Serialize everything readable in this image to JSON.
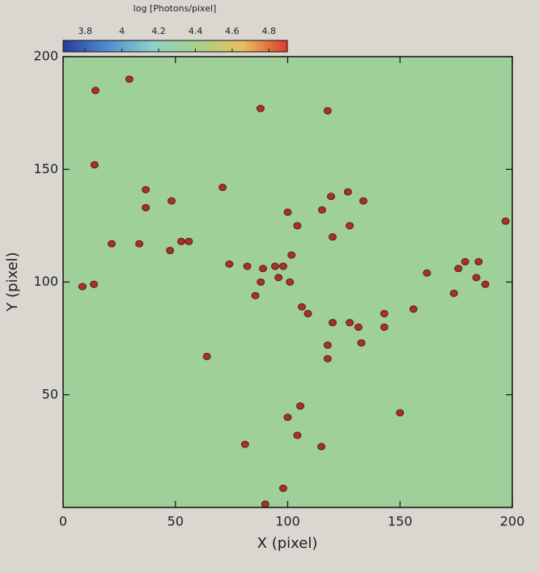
{
  "chart_data": {
    "type": "scatter",
    "xlabel": "X (pixel)",
    "ylabel": "Y (pixel)",
    "xlim": [
      0,
      200
    ],
    "ylim": [
      0,
      200
    ],
    "xticks": [
      0,
      50,
      100,
      150,
      200
    ],
    "yticks": [
      50,
      100,
      150,
      200
    ],
    "background_value": 4.35,
    "color": "#a8322a",
    "x": [
      29.5,
      14.4,
      87.9,
      117.8,
      14,
      36.8,
      36.8,
      48.3,
      71,
      21.6,
      33.9,
      47.6,
      52.6,
      56,
      8.6,
      13.7,
      74,
      82,
      89,
      94.4,
      98,
      88,
      85.6,
      100,
      104.3,
      101.7,
      95.9,
      101,
      106.3,
      109,
      120,
      117.8,
      117.8,
      119.3,
      115.3,
      120,
      126.8,
      133.7,
      127.6,
      127.6,
      131.5,
      132.8,
      143,
      143,
      156,
      162,
      174,
      176,
      179,
      185,
      184,
      188,
      197,
      64,
      150,
      105.6,
      100,
      104.3,
      115,
      81,
      98,
      90
    ],
    "values": [
      190,
      185,
      177,
      176,
      152,
      141,
      133,
      136,
      142,
      117,
      117,
      114,
      118,
      118,
      98,
      99,
      108,
      107,
      106,
      107,
      107,
      100,
      94,
      131,
      125,
      112,
      102,
      100,
      89,
      86,
      82,
      72,
      66,
      138,
      132,
      120,
      140,
      136,
      125,
      82,
      80,
      73,
      86,
      80,
      88,
      104,
      95,
      106,
      109,
      109,
      102,
      99,
      127,
      67,
      42,
      45,
      40,
      32,
      27,
      28,
      8.5,
      1.5
    ],
    "colorbar": {
      "label": "log [Photons/pixel]",
      "lim": [
        3.68,
        4.9
      ],
      "ticks": [
        3.8,
        4,
        4.2,
        4.4,
        4.6,
        4.8
      ],
      "colors": [
        "#2b3a9c",
        "#4f8fd0",
        "#8fd0c8",
        "#a6d08a",
        "#e8c060",
        "#e03a2a"
      ]
    }
  }
}
